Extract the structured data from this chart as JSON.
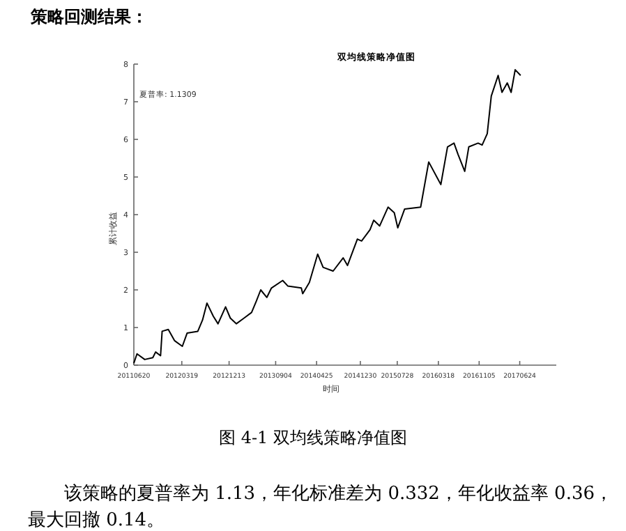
{
  "chart_data": {
    "type": "line",
    "title": "双均线策略净值图",
    "xlabel": "时间",
    "ylabel": "累计收益",
    "annotations": [
      "夏普率: 1.1309",
      "策略回测结果：",
      "图 4-1 双均线策略净值图",
      "该策略的夏普率为 1.13，年化标准差为 0.332，年化收益率 0.36，最大回撤 0.14。"
    ],
    "x": [
      "2011-06-20",
      "2011-07-08",
      "2011-08-21",
      "2011-10-06",
      "2011-10-22",
      "2011-11-19",
      "2011-11-28",
      "2012-01-02",
      "2012-02-07",
      "2012-03-22",
      "2012-04-18",
      "2012-06-18",
      "2012-07-15",
      "2012-08-09",
      "2012-09-14",
      "2012-10-11",
      "2012-11-23",
      "2012-12-20",
      "2013-01-23",
      "2013-03-08",
      "2013-04-20",
      "2013-05-17",
      "2013-06-11",
      "2013-07-16",
      "2013-08-11",
      "2013-10-14",
      "2013-11-13",
      "2014-01-28",
      "2014-02-05",
      "2014-03-15",
      "2014-05-01",
      "2014-06-01",
      "2014-07-28",
      "2014-09-23",
      "2014-10-18",
      "2014-12-13",
      "2015-01-06",
      "2015-02-23",
      "2015-03-16",
      "2015-04-19",
      "2015-06-06",
      "2015-07-11",
      "2015-07-31",
      "2015-09-08",
      "2015-12-08",
      "2016-01-23",
      "2016-04-01",
      "2016-05-09",
      "2016-06-15",
      "2016-07-08",
      "2016-08-15",
      "2016-09-07",
      "2016-10-30",
      "2016-11-22",
      "2016-12-21",
      "2017-01-13",
      "2017-02-21",
      "2017-03-15",
      "2017-04-14",
      "2017-05-06",
      "2017-05-29",
      "2017-06-29"
    ],
    "values": [
      0.05,
      0.3,
      0.15,
      0.2,
      0.35,
      0.25,
      0.9,
      0.95,
      0.65,
      0.5,
      0.85,
      0.9,
      1.2,
      1.65,
      1.3,
      1.1,
      1.55,
      1.25,
      1.1,
      1.25,
      1.4,
      1.7,
      2.0,
      1.8,
      2.05,
      2.25,
      2.1,
      2.05,
      1.9,
      2.2,
      2.95,
      2.6,
      2.5,
      2.85,
      2.65,
      3.35,
      3.3,
      3.6,
      3.85,
      3.7,
      4.2,
      4.05,
      3.65,
      4.15,
      4.2,
      5.4,
      4.8,
      5.8,
      5.9,
      5.6,
      5.15,
      5.8,
      5.9,
      5.85,
      6.15,
      7.15,
      7.7,
      7.25,
      7.5,
      7.25,
      7.85,
      7.7
    ],
    "color": "#000000",
    "xlim": [
      "2011-06-20",
      "2018-01-18"
    ],
    "xticks": [
      {
        "value": "2011-06-20",
        "label": "20110620"
      },
      {
        "value": "2012-03-19",
        "label": "20120319"
      },
      {
        "value": "2012-12-13",
        "label": "20121213"
      },
      {
        "value": "2013-09-04",
        "label": "20130904"
      },
      {
        "value": "2014-04-25",
        "label": "20140425"
      },
      {
        "value": "2014-12-30",
        "label": "20141230"
      },
      {
        "value": "2015-07-28",
        "label": "20150728"
      },
      {
        "value": "2016-03-18",
        "label": "20160318"
      },
      {
        "value": "2016-11-05",
        "label": "20161105"
      },
      {
        "value": "2017-06-24",
        "label": "20170624"
      }
    ],
    "ylim": [
      0,
      8
    ],
    "yticks": [
      0,
      1,
      2,
      3,
      4,
      5,
      6,
      7,
      8
    ],
    "line_style": "solid",
    "marker": "none",
    "grid": false
  }
}
